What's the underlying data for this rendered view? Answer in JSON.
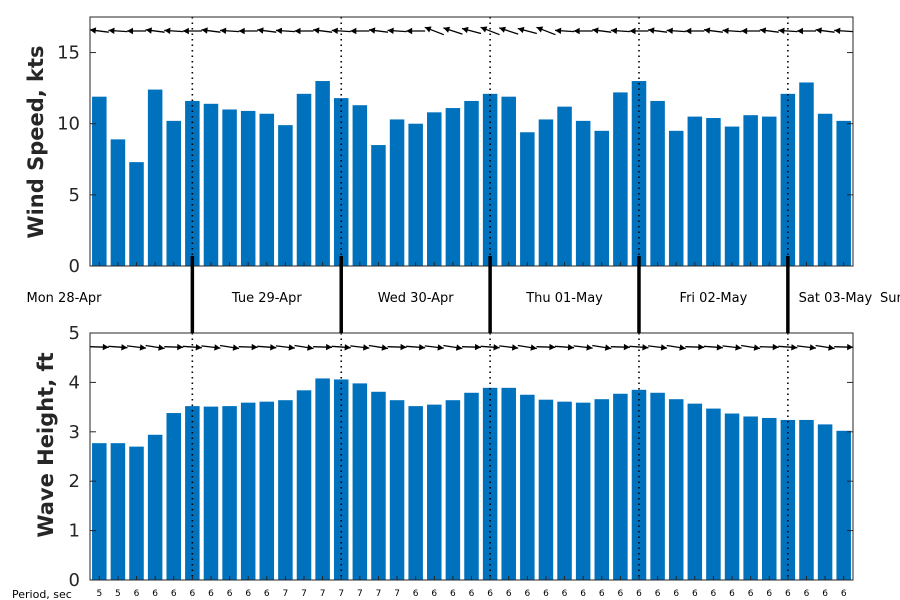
{
  "chart_data": [
    {
      "type": "bar",
      "ylabel": "Wind Speed, kts",
      "ylim": [
        0,
        17.5
      ],
      "yticks": [
        "0",
        "5",
        "10",
        "15"
      ],
      "color": "#0072BD",
      "values": [
        11.9,
        8.9,
        7.3,
        12.4,
        10.2,
        11.6,
        11.4,
        11.0,
        10.9,
        10.7,
        9.9,
        12.1,
        13.0,
        11.8,
        11.3,
        8.5,
        10.3,
        10.0,
        10.8,
        11.1,
        11.6,
        12.1,
        11.9,
        9.4,
        10.3,
        11.2,
        10.2,
        9.5,
        12.2,
        13.0,
        11.6,
        9.5,
        10.5,
        10.4,
        9.8,
        10.6,
        10.5,
        12.1,
        12.9,
        10.7,
        10.2
      ],
      "direction_arrows": "shown above bars (pointing west-northwest)"
    },
    {
      "type": "bar",
      "ylabel": "Wave Height, ft",
      "ylim": [
        0,
        5
      ],
      "yticks": [
        "0",
        "1",
        "2",
        "3",
        "4",
        "5"
      ],
      "color": "#0072BD",
      "values": [
        2.77,
        2.77,
        2.7,
        2.94,
        3.38,
        3.52,
        3.51,
        3.52,
        3.59,
        3.61,
        3.64,
        3.84,
        4.08,
        4.06,
        3.98,
        3.81,
        3.64,
        3.52,
        3.55,
        3.64,
        3.79,
        3.89,
        3.89,
        3.75,
        3.65,
        3.61,
        3.59,
        3.66,
        3.77,
        3.85,
        3.79,
        3.66,
        3.57,
        3.47,
        3.37,
        3.31,
        3.28,
        3.24,
        3.24,
        3.15,
        3.02
      ],
      "direction_arrows": "shown above bars (pointing east)"
    }
  ],
  "days": [
    "Mon 28-Apr",
    "Tue 29-Apr",
    "Wed 30-Apr",
    "Thu 01-May",
    "Fri 02-May",
    "Sat 03-May",
    "Sun"
  ],
  "period_label": "Period, sec",
  "periods": [
    "5",
    "5",
    "6",
    "6",
    "6",
    "6",
    "6",
    "6",
    "6",
    "6",
    "7",
    "7",
    "7",
    "7",
    "7",
    "7",
    "7",
    "6",
    "6",
    "6",
    "6",
    "6",
    "6",
    "6",
    "6",
    "6",
    "6",
    "6",
    "6",
    "6",
    "6",
    "6",
    "6",
    "6",
    "6",
    "6",
    "6",
    "6",
    "6",
    "6",
    "6"
  ],
  "axes_color": "#262626",
  "arrow_color": "#000000"
}
